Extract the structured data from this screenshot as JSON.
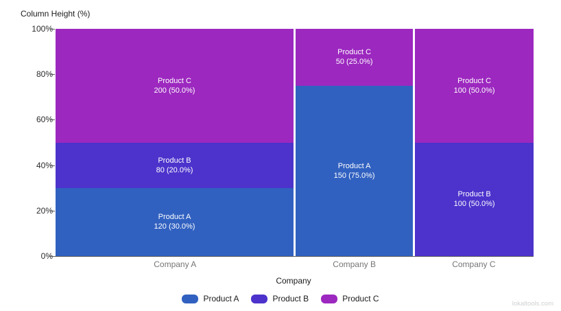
{
  "watermark": "lokaltools.com",
  "chart_data": {
    "type": "marimekko",
    "title": "",
    "ylabel": "Column Height (%)",
    "xlabel": "Company",
    "ylim": [
      0,
      100
    ],
    "grid": false,
    "legend_position": "bottom-center",
    "y_ticks": [
      {
        "pct": 0,
        "label": "0%"
      },
      {
        "pct": 20,
        "label": "20%"
      },
      {
        "pct": 40,
        "label": "40%"
      },
      {
        "pct": 60,
        "label": "60%"
      },
      {
        "pct": 80,
        "label": "80%"
      },
      {
        "pct": 100,
        "label": "100%"
      }
    ],
    "series": [
      {
        "name": "Product A",
        "color": "#3161C0"
      },
      {
        "name": "Product B",
        "color": "#4D33CC"
      },
      {
        "name": "Product C",
        "color": "#9C28BF"
      }
    ],
    "categories": [
      "Company A",
      "Company B",
      "Company C"
    ],
    "columns": [
      {
        "category": "Company A",
        "total": 400,
        "width_frac": 0.5,
        "segments": [
          {
            "series": "Product A",
            "value": 120,
            "pct": 30.0,
            "label_line1": "Product A",
            "label_line2": "120 (30.0%)"
          },
          {
            "series": "Product B",
            "value": 80,
            "pct": 20.0,
            "label_line1": "Product B",
            "label_line2": "80 (20.0%)"
          },
          {
            "series": "Product C",
            "value": 200,
            "pct": 50.0,
            "label_line1": "Product C",
            "label_line2": "200 (50.0%)"
          }
        ]
      },
      {
        "category": "Company B",
        "total": 200,
        "width_frac": 0.25,
        "segments": [
          {
            "series": "Product A",
            "value": 150,
            "pct": 75.0,
            "label_line1": "Product A",
            "label_line2": "150 (75.0%)"
          },
          {
            "series": "Product C",
            "value": 50,
            "pct": 25.0,
            "label_line1": "Product C",
            "label_line2": "50 (25.0%)"
          }
        ]
      },
      {
        "category": "Company C",
        "total": 200,
        "width_frac": 0.25,
        "segments": [
          {
            "series": "Product B",
            "value": 100,
            "pct": 50.0,
            "label_line1": "Product B",
            "label_line2": "100 (50.0%)"
          },
          {
            "series": "Product C",
            "value": 100,
            "pct": 50.0,
            "label_line1": "Product C",
            "label_line2": "100 (50.0%)"
          }
        ]
      }
    ],
    "legend": [
      {
        "label": "Product A"
      },
      {
        "label": "Product B"
      },
      {
        "label": "Product C"
      }
    ]
  }
}
